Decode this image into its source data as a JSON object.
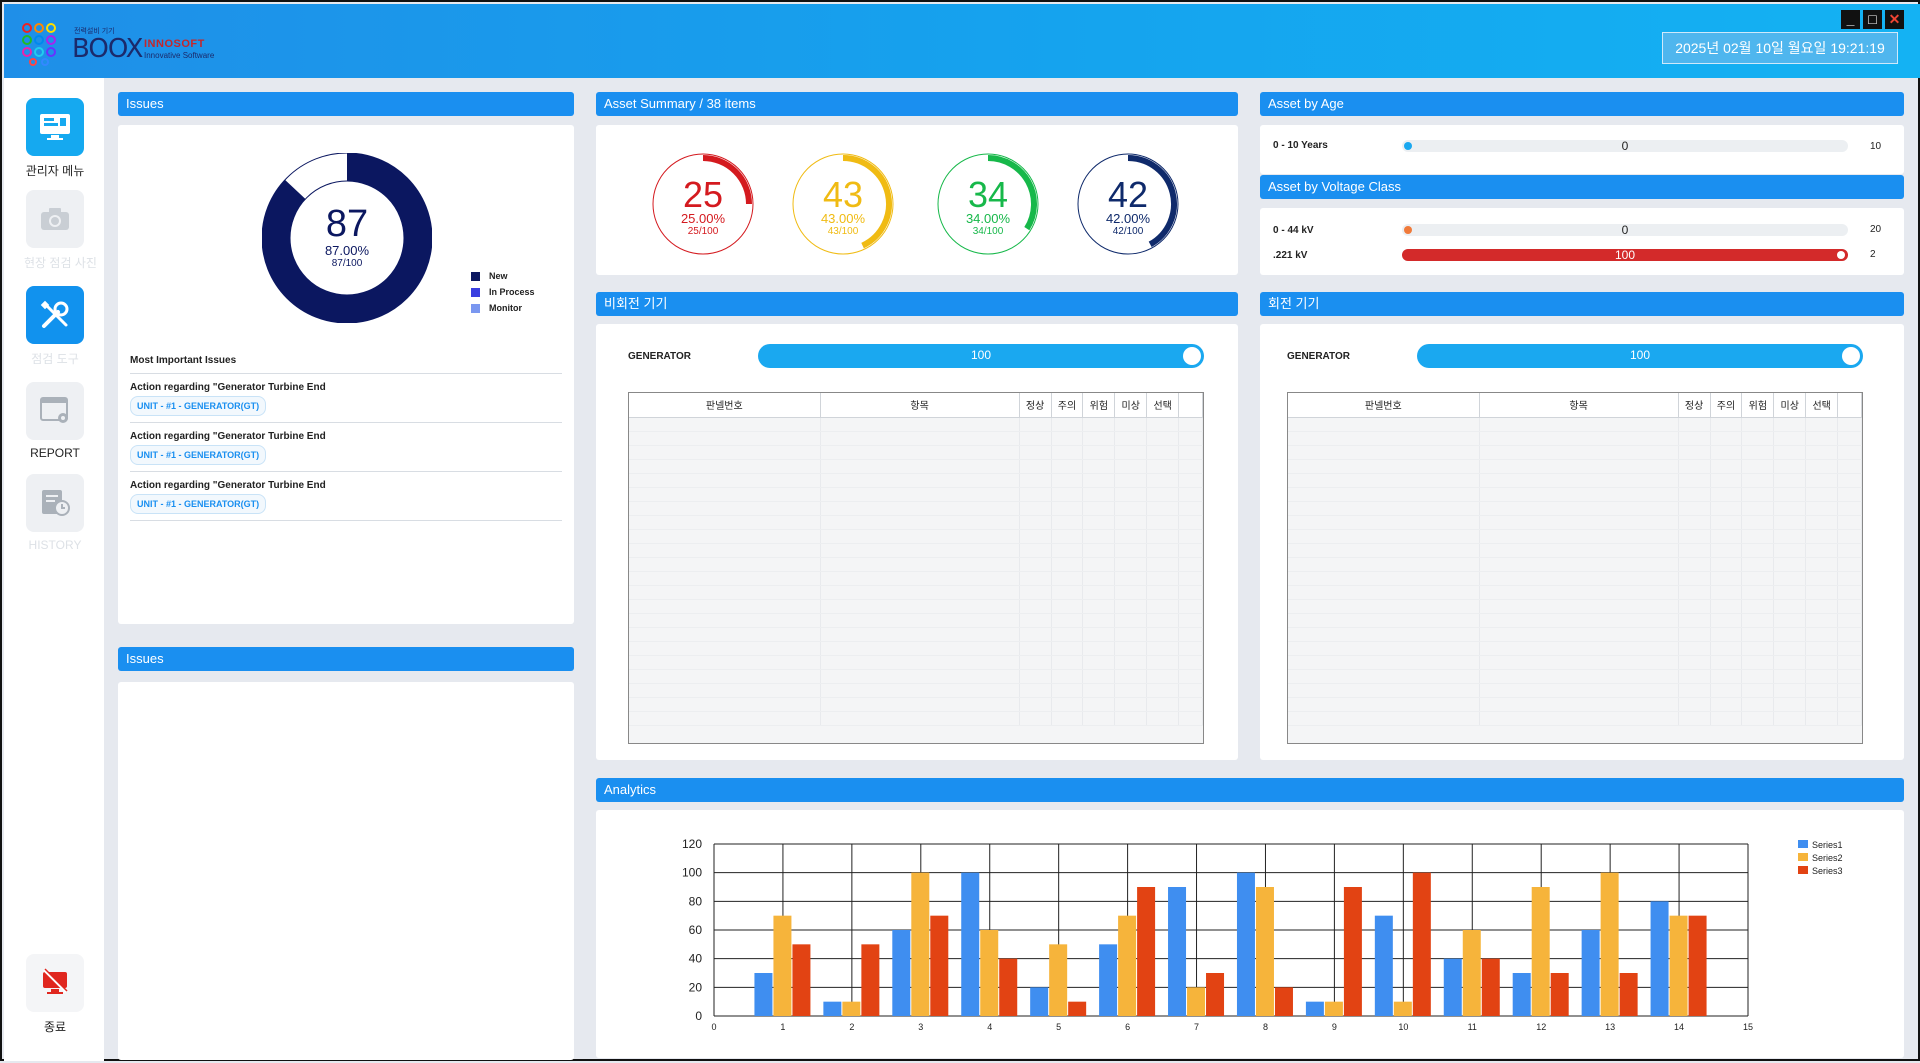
{
  "app": {
    "logo_small": "전력설비 기기",
    "logo_brand": "BOOX",
    "company": "INNOSOFT",
    "company_sub": "Innovative Software",
    "datetime": "2025년 02월 10일 월요일 19:21:19",
    "window_buttons": [
      "_",
      "□",
      "✕"
    ]
  },
  "sidebar": {
    "items": [
      {
        "label": "관리자 메뉴",
        "icon": "monitor-icon",
        "state": "active"
      },
      {
        "label": "현장 점검 사진",
        "icon": "camera-icon",
        "state": "dim"
      },
      {
        "label": "점검 도구",
        "icon": "tools-icon",
        "state": "active"
      },
      {
        "label": "REPORT",
        "icon": "report-settings-icon",
        "state": "dim"
      },
      {
        "label": "HISTORY",
        "icon": "history-icon",
        "state": "dim"
      }
    ],
    "exit_label": "종료",
    "exit_icon": "exit-monitor-icon"
  },
  "issues_panel": {
    "title": "Issues",
    "donut": {
      "value": "87",
      "percent": "87.00%",
      "ratio": "87/100",
      "fraction": 0.87,
      "color": "#0b1760"
    },
    "legend": [
      {
        "label": "New",
        "color": "#0b1760"
      },
      {
        "label": "In Process",
        "color": "#3a3fe0"
      },
      {
        "label": "Monitor",
        "color": "#7a97f0"
      }
    ],
    "list_title": "Most Important Issues",
    "list": [
      {
        "title": "Action regarding \"Generator Turbine End",
        "tag": "UNIT - #1 - GENERATOR(GT)"
      },
      {
        "title": "Action regarding \"Generator Turbine End",
        "tag": "UNIT - #1 - GENERATOR(GT)"
      },
      {
        "title": "Action regarding \"Generator Turbine End",
        "tag": "UNIT - #1 - GENERATOR(GT)"
      }
    ]
  },
  "issues_panel2": {
    "title": "Issues"
  },
  "asset_summary": {
    "title": "Asset Summary / 38 items",
    "rings": [
      {
        "value": "25",
        "percent": "25.00%",
        "ratio": "25/100",
        "fraction": 0.25,
        "color": "#d41a1f"
      },
      {
        "value": "43",
        "percent": "43.00%",
        "ratio": "43/100",
        "fraction": 0.43,
        "color": "#f0bb13"
      },
      {
        "value": "34",
        "percent": "34.00%",
        "ratio": "34/100",
        "fraction": 0.34,
        "color": "#17b84a"
      },
      {
        "value": "42",
        "percent": "42.00%",
        "ratio": "42/100",
        "fraction": 0.42,
        "color": "#0f2a6b"
      }
    ]
  },
  "asset_by_age": {
    "title": "Asset by Age",
    "rows": [
      {
        "label": "0 - 10 Years",
        "value": "0",
        "max": "10",
        "fraction": 0.0,
        "color": "#1aa8f0"
      }
    ]
  },
  "asset_by_voltage": {
    "title": "Asset by Voltage Class",
    "rows": [
      {
        "label": "0 - 44 kV",
        "value": "0",
        "max": "20",
        "fraction": 0.0,
        "color": "#f07a3a"
      },
      {
        "label": ".221 kV",
        "value": "100",
        "max": "2",
        "fraction": 1.0,
        "color": "#d32a2a"
      }
    ]
  },
  "non_rotating": {
    "title": "비회전 기기",
    "generator_label": "GENERATOR",
    "slider_value": "100",
    "columns": [
      "판넬번호",
      "항목",
      "정상",
      "주의",
      "위험",
      "미상",
      "선택"
    ]
  },
  "rotating": {
    "title": "회전 기기",
    "generator_label": "GENERATOR",
    "slider_value": "100",
    "columns": [
      "판넬번호",
      "항목",
      "정상",
      "주의",
      "위험",
      "미상",
      "선택"
    ]
  },
  "analytics": {
    "title": "Analytics"
  },
  "chart_data": {
    "type": "bar",
    "x": [
      1,
      2,
      3,
      4,
      5,
      6,
      7,
      8,
      9,
      10,
      11,
      12,
      13,
      14
    ],
    "xlim": [
      0,
      15
    ],
    "ylim": [
      0,
      120
    ],
    "yticks": [
      0,
      20,
      40,
      60,
      80,
      100,
      120
    ],
    "xticks": [
      0,
      1,
      2,
      3,
      4,
      5,
      6,
      7,
      8,
      9,
      10,
      11,
      12,
      13,
      14,
      15
    ],
    "grid": true,
    "legend_position": "top-right",
    "series": [
      {
        "name": "Series1",
        "color": "#3f8ef0",
        "values": [
          30,
          10,
          60,
          100,
          20,
          50,
          90,
          100,
          10,
          70,
          40,
          30,
          60,
          80
        ]
      },
      {
        "name": "Series2",
        "color": "#f6b43b",
        "values": [
          70,
          10,
          100,
          60,
          50,
          70,
          20,
          90,
          10,
          10,
          60,
          90,
          100,
          70
        ]
      },
      {
        "name": "Series3",
        "color": "#e24313",
        "values": [
          50,
          50,
          70,
          40,
          10,
          90,
          30,
          20,
          90,
          100,
          40,
          30,
          30,
          70
        ]
      }
    ]
  }
}
